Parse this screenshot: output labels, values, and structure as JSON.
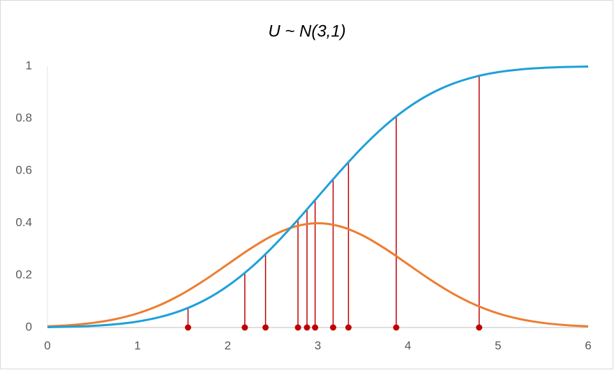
{
  "chart_data": {
    "type": "line",
    "title": "U ~ N(3,1)",
    "x": [
      0,
      0.25,
      0.5,
      0.75,
      1,
      1.25,
      1.5,
      1.75,
      2,
      2.25,
      2.5,
      2.75,
      3,
      3.25,
      3.5,
      3.75,
      4,
      4.25,
      4.5,
      4.75,
      5,
      5.25,
      5.5,
      5.75,
      6
    ],
    "series": [
      {
        "color": "#ed7d31",
        "values": [
          0.00443,
          0.00909,
          0.01753,
          0.03174,
          0.05399,
          0.08628,
          0.12952,
          0.18265,
          0.24197,
          0.30114,
          0.35207,
          0.38667,
          0.39894,
          0.38667,
          0.35207,
          0.30114,
          0.24197,
          0.18265,
          0.12952,
          0.08628,
          0.05399,
          0.03174,
          0.01753,
          0.00909,
          0.00443
        ]
      },
      {
        "color": "#1fa0d8",
        "values": [
          0.00135,
          0.00298,
          0.00621,
          0.01222,
          0.02275,
          0.04006,
          0.06681,
          0.10565,
          0.15866,
          0.22663,
          0.30854,
          0.40129,
          0.5,
          0.59871,
          0.69146,
          0.77337,
          0.84134,
          0.89435,
          0.93319,
          0.95994,
          0.97725,
          0.98778,
          0.99379,
          0.99702,
          0.99865
        ]
      }
    ],
    "samples": {
      "color": "#c00000",
      "x": [
        1.56,
        2.19,
        2.42,
        2.78,
        2.88,
        2.97,
        3.17,
        3.34,
        3.87,
        4.79
      ],
      "values": [
        0.075,
        0.209,
        0.281,
        0.413,
        0.452,
        0.488,
        0.567,
        0.633,
        0.808,
        0.963
      ]
    },
    "xlim": [
      0,
      6
    ],
    "xticks": [
      0,
      1,
      2,
      3,
      4,
      5,
      6
    ],
    "ylim": [
      0,
      1
    ],
    "yticks": [
      0,
      0.2,
      0.4,
      0.6,
      0.8,
      1
    ]
  }
}
